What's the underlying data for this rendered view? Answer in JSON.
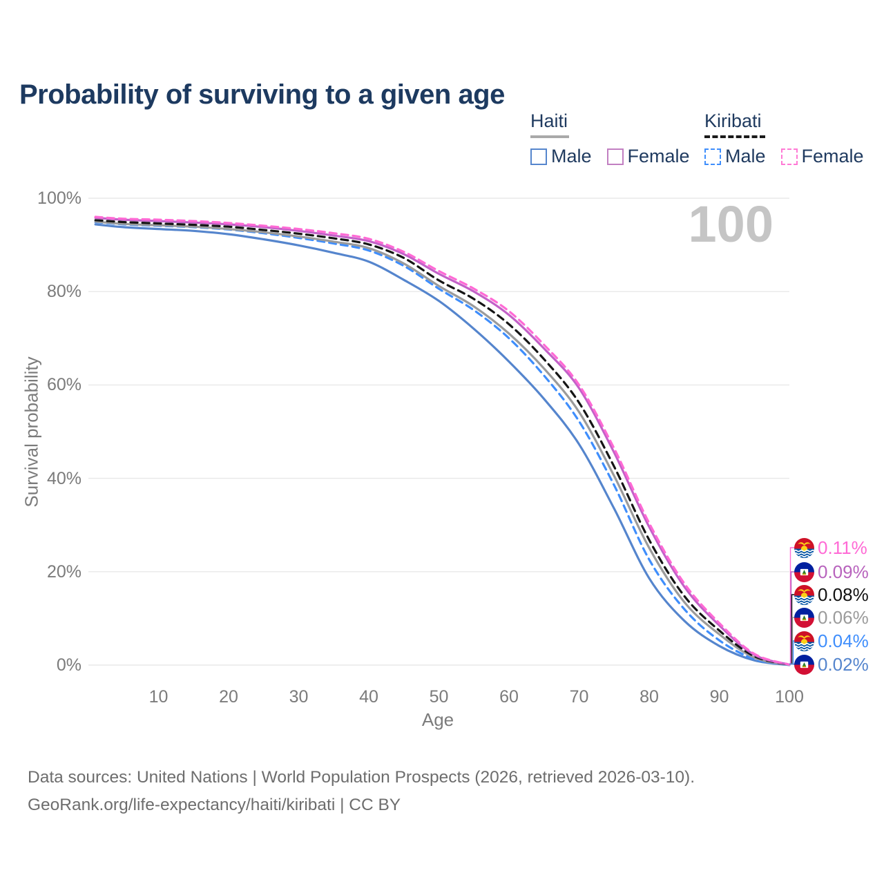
{
  "page": {
    "title": "Probability of surviving to a given age",
    "footer": {
      "line1": "Data sources: United Nations | World Population Prospects (2026, retrieved 2026-03-10).",
      "line2": "GeoRank.org/life-expectancy/haiti/kiribati | CC BY"
    }
  },
  "legend": {
    "groups": [
      {
        "name": "Haiti",
        "style": "solid",
        "underline_color": "#a9a9a9",
        "items": [
          {
            "label": "Male",
            "color": "#5585cd"
          },
          {
            "label": "Female",
            "color": "#c17fc1"
          }
        ]
      },
      {
        "name": "Kiribati",
        "style": "dashed",
        "underline_color": "#1a1a1a",
        "items": [
          {
            "label": "Male",
            "color": "#3f8efc"
          },
          {
            "label": "Female",
            "color": "#ff7ad5"
          }
        ]
      }
    ]
  },
  "chart_data": {
    "type": "line",
    "title": "Probability of surviving to a given age",
    "xlabel": "Age",
    "ylabel": "Survival probability",
    "xlim": [
      0,
      100
    ],
    "ylim": [
      0,
      100
    ],
    "x_ticks": [
      10,
      20,
      30,
      40,
      50,
      60,
      70,
      80,
      90,
      100
    ],
    "y_ticks": [
      0,
      20,
      40,
      60,
      80,
      100
    ],
    "y_tick_suffix": "%",
    "grid": "horizontal",
    "legend_position": "top-right",
    "age_counter": "100",
    "x": [
      1,
      5,
      10,
      15,
      20,
      25,
      30,
      35,
      40,
      45,
      50,
      55,
      60,
      65,
      70,
      75,
      80,
      85,
      90,
      95,
      100
    ],
    "series": [
      {
        "id": "haiti-male",
        "name": "Haiti Male",
        "country": "Haiti",
        "sex": "Male",
        "color": "#5585cd",
        "dash": false,
        "values": [
          94.4,
          93.8,
          93.4,
          93.0,
          92.3,
          91.2,
          89.9,
          88.3,
          86.4,
          82.5,
          78.0,
          72.0,
          65.0,
          57.0,
          47.3,
          33.5,
          18.6,
          9.5,
          4.1,
          1.0,
          0.02
        ]
      },
      {
        "id": "kiribati-male",
        "name": "Kiribati Male",
        "country": "Kiribati",
        "sex": "Male",
        "color": "#3f8efc",
        "dash": true,
        "values": [
          94.9,
          94.4,
          94.1,
          93.8,
          93.3,
          92.5,
          91.5,
          90.3,
          88.8,
          85.5,
          80.6,
          76.0,
          70.0,
          62.0,
          52.2,
          38.5,
          22.6,
          12.0,
          5.3,
          1.3,
          0.04
        ]
      },
      {
        "id": "haiti-both",
        "name": "Haiti Both sexes",
        "country": "Haiti",
        "sex": "Both",
        "color": "#9b9b9b",
        "dash": false,
        "values": [
          95.0,
          94.5,
          94.2,
          93.9,
          93.4,
          92.7,
          91.8,
          90.7,
          89.3,
          86.0,
          81.2,
          76.8,
          71.0,
          63.5,
          54.2,
          40.5,
          25.1,
          13.5,
          6.6,
          1.6,
          0.06
        ]
      },
      {
        "id": "kiribati-both",
        "name": "Kiribati Both sexes",
        "country": "Kiribati",
        "sex": "Both",
        "color": "#151515",
        "dash": true,
        "values": [
          95.3,
          94.9,
          94.6,
          94.3,
          93.9,
          93.2,
          92.4,
          91.4,
          90.1,
          87.2,
          82.4,
          78.4,
          73.0,
          65.5,
          56.2,
          42.5,
          26.8,
          14.8,
          7.4,
          1.9,
          0.08
        ]
      },
      {
        "id": "haiti-female",
        "name": "Haiti Female",
        "country": "Haiti",
        "sex": "Female",
        "color": "#c361c8",
        "dash": false,
        "values": [
          95.8,
          95.4,
          95.1,
          94.8,
          94.4,
          93.8,
          93.0,
          92.0,
          90.8,
          88.0,
          83.8,
          80.0,
          75.0,
          67.8,
          59.3,
          45.5,
          29.6,
          16.8,
          8.5,
          2.2,
          0.09
        ]
      },
      {
        "id": "kiribati-female",
        "name": "Kiribati Female",
        "country": "Kiribati",
        "sex": "Female",
        "color": "#ff6ad5",
        "dash": true,
        "values": [
          96.0,
          95.6,
          95.4,
          95.1,
          94.7,
          94.1,
          93.4,
          92.5,
          91.3,
          88.5,
          84.4,
          80.6,
          75.8,
          68.6,
          60.0,
          46.4,
          30.4,
          17.5,
          9.0,
          2.4,
          0.11
        ]
      }
    ],
    "end_labels": [
      {
        "value": "0.11%",
        "series": "kiribati-female",
        "flag": "kiribati",
        "color": "#ff6ad5"
      },
      {
        "value": "0.09%",
        "series": "haiti-female",
        "flag": "haiti",
        "color": "#b863bd"
      },
      {
        "value": "0.08%",
        "series": "kiribati-both",
        "flag": "kiribati",
        "color": "#111111"
      },
      {
        "value": "0.06%",
        "series": "haiti-both",
        "flag": "haiti",
        "color": "#9b9b9b"
      },
      {
        "value": "0.04%",
        "series": "kiribati-male",
        "flag": "kiribati",
        "color": "#3f8efc"
      },
      {
        "value": "0.02%",
        "series": "haiti-male",
        "flag": "haiti",
        "color": "#5585cd"
      }
    ]
  }
}
